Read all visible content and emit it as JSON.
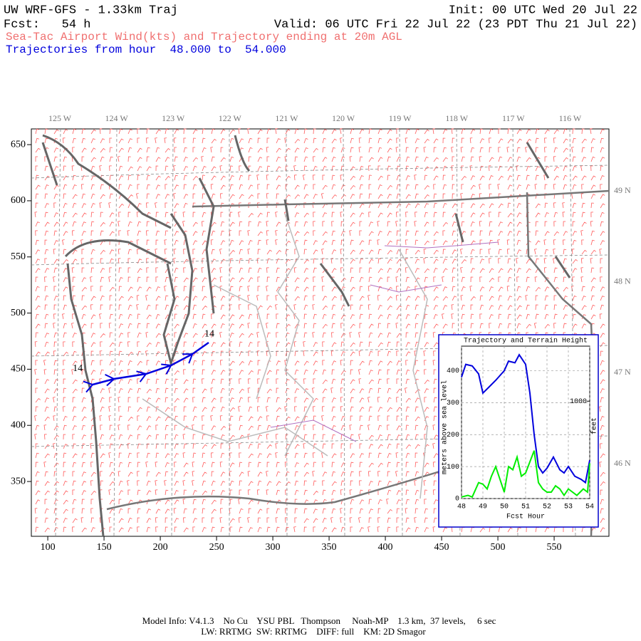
{
  "header": {
    "title": "UW WRF-GFS - 1.33km Traj",
    "init": "Init: 00 UTC Wed 20 Jul 22",
    "forecast": "Fcst:   54 h",
    "valid": "Valid: 06 UTC Fri 22 Jul 22 (23 PDT Thu 21 Jul 22)",
    "subtitle": "Sea-Tac Airport Wind(kts) and Trajectory ending at 20m AGL",
    "hours": "Trajectories from hour  48.000 to  54.000"
  },
  "map": {
    "xlim": [
      85.4,
      598.7
    ],
    "ylim": [
      301.2,
      664
    ],
    "xticks": [
      100,
      150,
      200,
      250,
      300,
      350,
      400,
      450,
      500,
      550
    ],
    "yticks": [
      350,
      400,
      450,
      500,
      550,
      600,
      650
    ],
    "lon_labels": [
      "125 W",
      "124 W",
      "123 W",
      "122 W",
      "121 W",
      "120 W",
      "119 W",
      "118 W",
      "117 W",
      "116 W"
    ],
    "lat_labels": [
      "49 N",
      "48 N",
      "47 N",
      "46 N"
    ],
    "trajectory": {
      "x": [
        139.9,
        158.9,
        187.3,
        209.5,
        228.5,
        243
      ],
      "y": [
        436.3,
        441.4,
        445.8,
        453.4,
        463.5,
        473.7
      ],
      "start_label": "14",
      "end_label": "14",
      "color": "#0000dd"
    }
  },
  "inset": {
    "title": "Trajectory and Terrain Height",
    "ylabel": "meters above sea level",
    "y2label": "feet",
    "xlabel": "Fcst Hour",
    "xlim": [
      48,
      54
    ],
    "ylim": [
      0,
      477
    ],
    "y2lim": [
      0,
      1565
    ],
    "xticks": [
      48,
      49,
      50,
      51,
      52,
      53,
      54
    ],
    "yticks": [
      0,
      100,
      200,
      300,
      400
    ],
    "y2ticks": [
      1000
    ],
    "series": [
      {
        "name": "trajectory",
        "color": "#0000dd",
        "x": [
          48,
          48.2,
          48.5,
          48.8,
          49,
          49.3,
          49.6,
          50,
          50.2,
          50.5,
          50.7,
          51,
          51.2,
          51.4,
          51.6,
          51.8,
          52,
          52.3,
          52.6,
          52.8,
          53,
          53.3,
          53.6,
          53.8,
          54
        ],
        "values": [
          380,
          420,
          415,
          390,
          330,
          350,
          370,
          400,
          430,
          425,
          450,
          420,
          330,
          200,
          100,
          80,
          95,
          130,
          90,
          80,
          100,
          70,
          60,
          50,
          120
        ]
      },
      {
        "name": "terrain",
        "color": "#00ee00",
        "x": [
          48,
          48.3,
          48.5,
          48.8,
          49,
          49.2,
          49.4,
          49.6,
          49.8,
          50,
          50.2,
          50.4,
          50.6,
          50.8,
          51,
          51.4,
          51.6,
          51.8,
          52,
          52.2,
          52.4,
          52.6,
          52.8,
          53,
          53.4,
          53.7,
          53.9,
          54
        ],
        "values": [
          5,
          10,
          5,
          50,
          45,
          30,
          70,
          100,
          60,
          20,
          100,
          90,
          130,
          70,
          80,
          150,
          50,
          30,
          20,
          20,
          40,
          30,
          10,
          30,
          10,
          30,
          20,
          110
        ]
      }
    ]
  },
  "footer": {
    "line1": "Model Info: V4.1.3    No Cu    YSU PBL   Thompson     Noah-MP    1.3 km,  37 levels,     6 sec",
    "line2": "LW: RRTMG  SW: RRTMG    DIFF: full    KM: 2D Smagor"
  }
}
